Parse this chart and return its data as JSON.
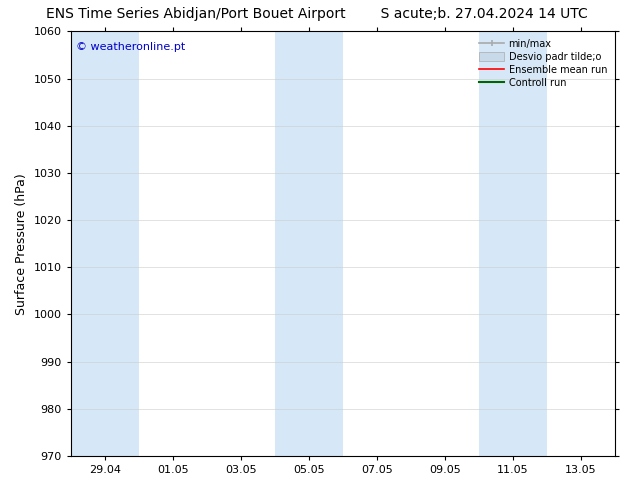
{
  "title_left": "ENS Time Series Abidjan/Port Bouet Airport",
  "title_right": "S acute;b. 27.04.2024 14 UTC",
  "ylabel": "Surface Pressure (hPa)",
  "ylim": [
    970,
    1060
  ],
  "yticks": [
    970,
    980,
    990,
    1000,
    1010,
    1020,
    1030,
    1040,
    1050,
    1060
  ],
  "x_tick_labels": [
    "29.04",
    "01.05",
    "03.05",
    "05.05",
    "07.05",
    "09.05",
    "11.05",
    "13.05"
  ],
  "x_tick_positions": [
    0.5,
    2.5,
    4.5,
    6.5,
    8.5,
    10.5,
    12.5,
    14.5
  ],
  "xlim": [
    -0.5,
    15.5
  ],
  "shaded_bands": [
    {
      "xmin": -0.5,
      "xmax": 1.5
    },
    {
      "xmin": 5.5,
      "xmax": 7.5
    },
    {
      "xmin": 11.5,
      "xmax": 13.5
    }
  ],
  "shaded_color": "#d6e8f7",
  "watermark_text": "© weatheronline.pt",
  "watermark_color": "#0000cc",
  "legend_labels": [
    "min/max",
    "Desvio padr tilde;o",
    "Ensemble mean run",
    "Controll run"
  ],
  "legend_minmax_color": "#aaaaaa",
  "legend_desvio_color": "#c8daea",
  "legend_ens_color": "#ff0000",
  "legend_ctrl_color": "#006600",
  "bg_color": "#ffffff",
  "plot_bg_color": "#ffffff",
  "title_fontsize": 10,
  "label_fontsize": 9,
  "tick_fontsize": 8,
  "watermark_fontsize": 8
}
